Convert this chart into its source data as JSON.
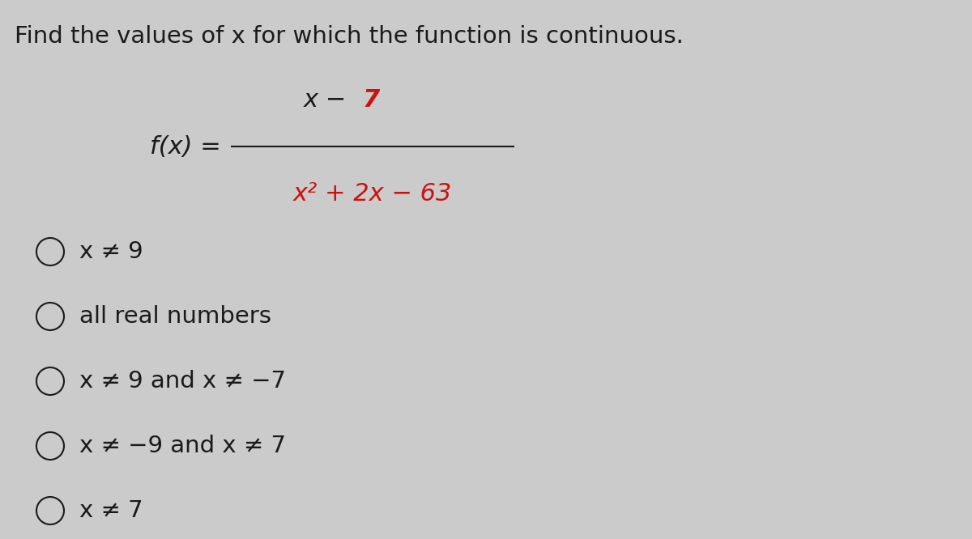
{
  "title": "Find the values of x for which the function is continuous.",
  "title_fontsize": 21,
  "title_color": "#1a1a1a",
  "bg_color": "#cbcbcb",
  "numerator_black": "x − ",
  "numerator_red": "7",
  "denominator_red": "x² + 2x − 63",
  "fx_label": "f(x) =",
  "options": [
    "x ≠ 9",
    "all real numbers",
    "x ≠ 9 and x ≠ −7",
    "x ≠ −9 and x ≠ 7",
    "x ≠ 7"
  ],
  "option_fontsize": 21,
  "text_color": "#1a1a1a",
  "red_color": "#cc1111",
  "black_color": "#1a1a1a",
  "circle_lw": 1.5
}
